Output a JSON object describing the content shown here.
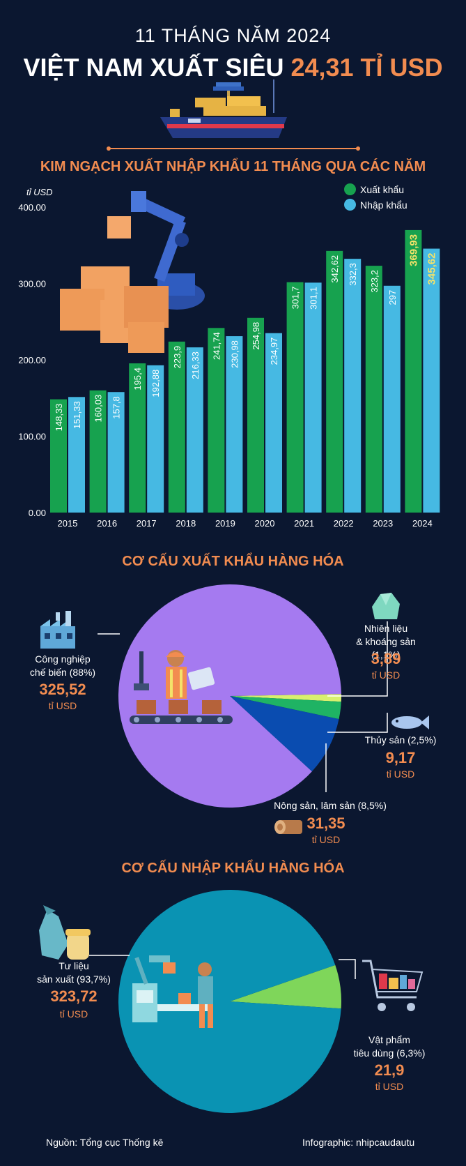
{
  "header": {
    "subtitle": "11 THÁNG NĂM 2024",
    "title_main": "VIỆT NAM XUẤT SIÊU ",
    "title_highlight": "24,31 TỈ USD"
  },
  "section1": {
    "title": "KIM NGẠCH XUẤT NHẬP KHẨU 11 THÁNG QUA CÁC NĂM",
    "unit": "tỉ USD",
    "legend_export": "Xuất khẩu",
    "legend_import": "Nhập khẩu"
  },
  "colors": {
    "export": "#17a24f",
    "import": "#46b9e3",
    "accent": "#f28c50",
    "highlight_value": "#f3e36a",
    "background": "#0b1730"
  },
  "chart_data": [
    {
      "type": "bar",
      "ylabel": "tỉ USD",
      "ylim": [
        0,
        400
      ],
      "yticks": [
        "0.00",
        "100.00",
        "200.00",
        "300.00",
        "400.00"
      ],
      "categories": [
        "2015",
        "2016",
        "2017",
        "2018",
        "2019",
        "2020",
        "2021",
        "2022",
        "2023",
        "2024"
      ],
      "series": [
        {
          "name": "Xuất khẩu",
          "values": [
            148.33,
            160.03,
            195.4,
            223.9,
            241.74,
            254.98,
            301.7,
            342.62,
            323.2,
            369.93
          ],
          "labels": [
            "148,33",
            "160,03",
            "195,4",
            "223,9",
            "241,74",
            "254,98",
            "301,7",
            "342,62",
            "323,2",
            "369,93"
          ]
        },
        {
          "name": "Nhập khẩu",
          "values": [
            151.33,
            157.8,
            192.88,
            216.33,
            230.98,
            234.97,
            301.1,
            332.3,
            297,
            345.62
          ],
          "labels": [
            "151,33",
            "157,8",
            "192,88",
            "216,33",
            "230,98",
            "234,97",
            "301,1",
            "332,3",
            "297",
            "345,62"
          ]
        }
      ],
      "grid": false,
      "legend": "top-right"
    },
    {
      "type": "pie",
      "title": "CƠ CẤU XUẤT KHẨU HÀNG HÓA",
      "slices": [
        {
          "label": "Công nghiệp chế biến (88%)",
          "percent": 88,
          "value": "325,52",
          "color": "#a57af0"
        },
        {
          "label": "Nhiên liệu & khoáng sản (1,1%)",
          "percent": 1.1,
          "value": "3,89",
          "color": "#d9f06e"
        },
        {
          "label": "Thủy sản (2,5%)",
          "percent": 2.5,
          "value": "9,17",
          "color": "#1fb364"
        },
        {
          "label": "Nông sản, lâm sản (8,5%)",
          "percent": 8.5,
          "value": "31,35",
          "color": "#0a4cb0"
        }
      ]
    },
    {
      "type": "pie",
      "title": "CƠ CẤU NHẬP KHẨU HÀNG HÓA",
      "slices": [
        {
          "label": "Tư liệu sản xuất (93,7%)",
          "percent": 93.7,
          "value": "323,72",
          "color": "#0a93b3"
        },
        {
          "label": "Vật phẩm tiêu dùng (6,3%)",
          "percent": 6.3,
          "value": "21,9",
          "color": "#7fd65a"
        }
      ]
    }
  ],
  "section2": {
    "title": "CƠ CẤU XUẤT KHẨU HÀNG HÓA",
    "cn_label1": "Công nghiệp",
    "cn_label2": "chế biến (88%)",
    "cn_value": "325,52",
    "nl_label1": "Nhiên liệu",
    "nl_label2": "& khoáng sản (1,1%)",
    "nl_value": "3,89",
    "ts_label": "Thủy sản (2,5%)",
    "ts_value": "9,17",
    "ns_label": "Nông sản, lâm sản (8,5%)",
    "ns_value": "31,35",
    "unit": "tỉ USD"
  },
  "section3": {
    "title": "CƠ CẤU NHẬP KHẨU HÀNG HÓA",
    "tl_label1": "Tư liệu",
    "tl_label2": "sản xuất (93,7%)",
    "tl_value": "323,72",
    "vp_label1": "Vật phẩm",
    "vp_label2": "tiêu dùng (6,3%)",
    "vp_value": "21,9",
    "unit": "tỉ USD"
  },
  "footer": {
    "source": "Nguồn: Tổng cục Thống kê",
    "credit": "Infographic: nhipcaudautu"
  }
}
